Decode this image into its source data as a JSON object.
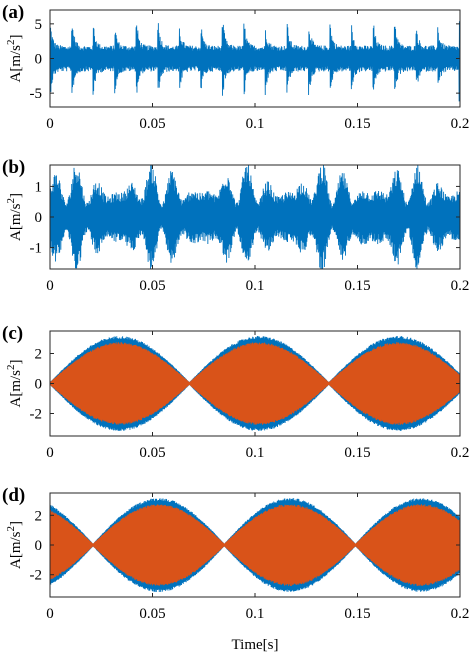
{
  "chart_data": [
    {
      "type": "line",
      "panel_label": "(a)",
      "ylabel": "A[m/s",
      "ylabel_sup": "2",
      "ylabel_close": "]",
      "xlabel": "",
      "xlim": [
        0,
        0.2
      ],
      "ylim": [
        -7,
        7
      ],
      "xticks": [
        0,
        0.05,
        0.1,
        0.15,
        0.2
      ],
      "xtick_labels": [
        "0",
        "0.05",
        "0.1",
        "0.15",
        "0.2"
      ],
      "yticks": [
        -5,
        0,
        5
      ],
      "ytick_labels": [
        "-5",
        "0",
        "5"
      ],
      "grid": false,
      "series": [
        {
          "color": "#0072BD",
          "signal": "impulsive",
          "baseline_amplitude": 1.5,
          "peak_amplitude": 5.5,
          "impulse_period": 0.0105,
          "carrier_hz": 3000
        }
      ]
    },
    {
      "type": "line",
      "panel_label": "(b)",
      "ylabel": "A[m/s",
      "ylabel_sup": "2",
      "ylabel_close": "]",
      "xlabel": "",
      "xlim": [
        0,
        0.2
      ],
      "ylim": [
        -1.7,
        1.7
      ],
      "xticks": [
        0,
        0.05,
        0.1,
        0.15,
        0.2
      ],
      "xtick_labels": [
        "0",
        "0.05",
        "0.1",
        "0.15",
        "0.2"
      ],
      "yticks": [
        -1,
        0,
        1
      ],
      "ytick_labels": [
        "-1",
        "0",
        "1"
      ],
      "grid": false,
      "series": [
        {
          "color": "#0072BD",
          "signal": "noisy-modulated",
          "baseline_amplitude": 0.35,
          "peak_amplitude": 1.5,
          "carrier_hz": 3000
        }
      ]
    },
    {
      "type": "line",
      "panel_label": "(c)",
      "ylabel": "A[m/s",
      "ylabel_sup": "2",
      "ylabel_close": "]",
      "xlabel": "",
      "xlim": [
        0,
        0.2
      ],
      "ylim": [
        -3.5,
        3.5
      ],
      "xticks": [
        0,
        0.05,
        0.1,
        0.15,
        0.2
      ],
      "xtick_labels": [
        "0",
        "0.05",
        "0.1",
        "0.15",
        "0.2"
      ],
      "yticks": [
        -2,
        0,
        2
      ],
      "ytick_labels": [
        "-2",
        "0",
        "2"
      ],
      "grid": false,
      "series": [
        {
          "color": "#0072BD",
          "signal": "beating",
          "peak_amplitude": 3.0,
          "carrier_hz": 660,
          "beat_period": 0.068,
          "beat_phase": 0.0
        },
        {
          "color": "#D95319",
          "signal": "beating",
          "peak_amplitude": 2.6,
          "carrier_hz": 660,
          "beat_period": 0.068,
          "beat_phase": 0.0
        }
      ]
    },
    {
      "type": "line",
      "panel_label": "(d)",
      "ylabel": "A[m/s",
      "ylabel_sup": "2",
      "ylabel_close": "]",
      "xlabel": "Time[s]",
      "xlim": [
        0,
        0.2
      ],
      "ylim": [
        -3.5,
        3.5
      ],
      "xticks": [
        0,
        0.05,
        0.1,
        0.15,
        0.2
      ],
      "xtick_labels": [
        "0",
        "0.05",
        "0.1",
        "0.15",
        "0.2"
      ],
      "yticks": [
        -2,
        0,
        2
      ],
      "ytick_labels": [
        "-2",
        "0",
        "2"
      ],
      "grid": false,
      "series": [
        {
          "color": "#0072BD",
          "signal": "beating",
          "peak_amplitude": 3.0,
          "carrier_hz": 660,
          "beat_period": 0.064,
          "beat_phase": 0.021
        },
        {
          "color": "#D95319",
          "signal": "beating",
          "peak_amplitude": 2.6,
          "carrier_hz": 660,
          "beat_period": 0.064,
          "beat_phase": 0.021
        }
      ]
    }
  ]
}
